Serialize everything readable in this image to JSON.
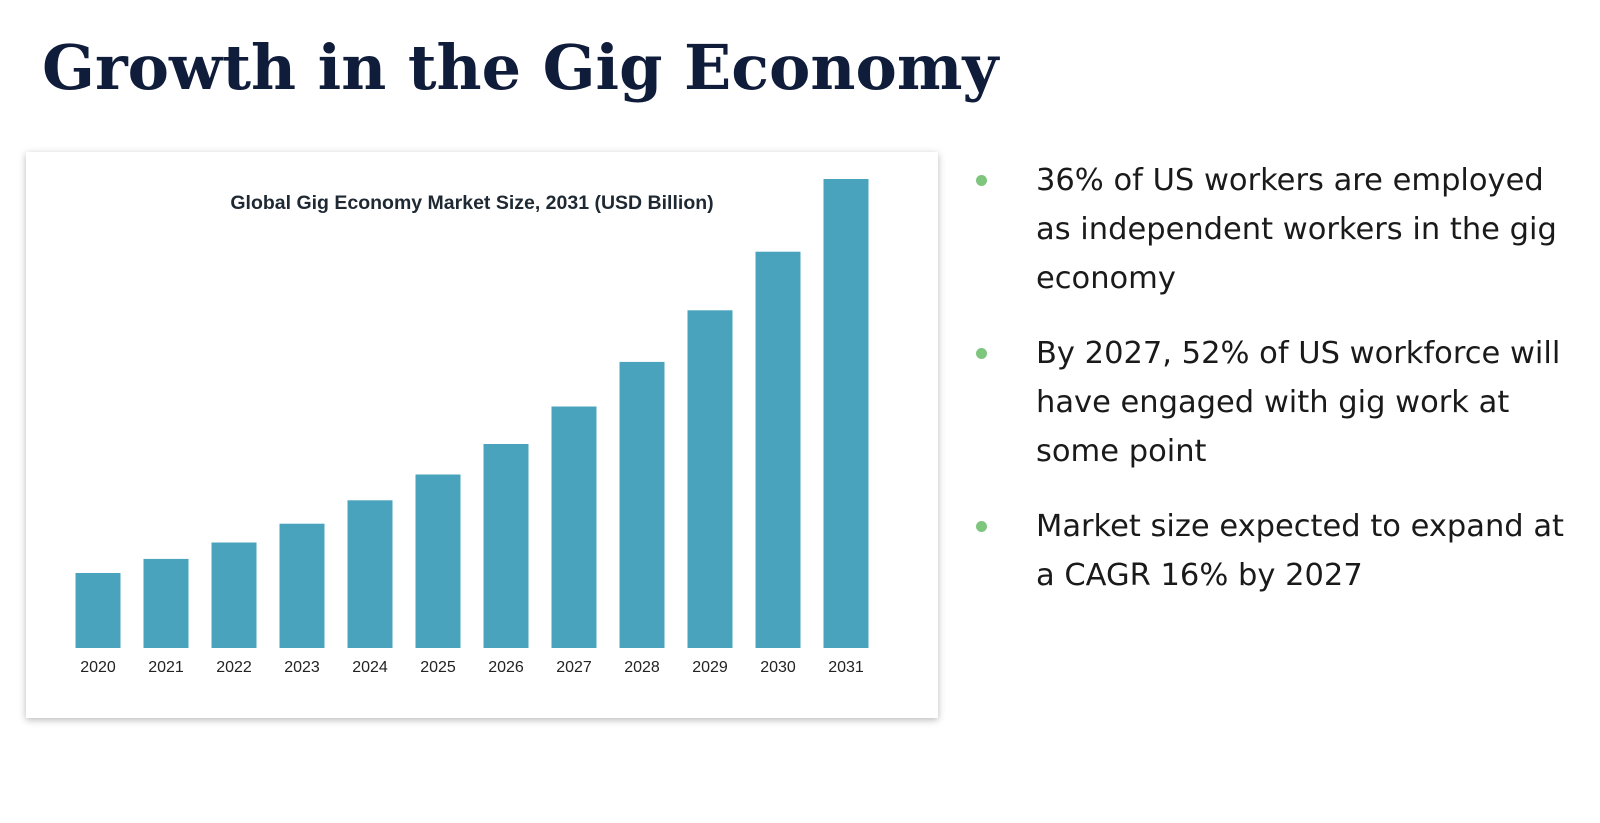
{
  "slide": {
    "title": "Growth in the Gig Economy"
  },
  "bullets": [
    "36% of US workers are employed as independent workers in the gig economy",
    "By 2027, 52% of US workforce will have engaged with gig work at some point",
    "Market size expected to expand at a CAGR 16% by 2027"
  ],
  "colors": {
    "bar": "#4aa3bd",
    "bullet": "#7ec57e",
    "title": "#0f1c3a"
  },
  "chart_data": {
    "type": "bar",
    "title": "Global Gig Economy Market Size, 2031 (USD Billion)",
    "categories": [
      "2020",
      "2021",
      "2022",
      "2023",
      "2024",
      "2025",
      "2026",
      "2027",
      "2028",
      "2029",
      "2030",
      "2031"
    ],
    "values": [
      16,
      19,
      22.5,
      26.5,
      31.5,
      37,
      43.5,
      51.5,
      61,
      72,
      84.5,
      100
    ],
    "xlabel": "",
    "ylabel": "",
    "ylim": [
      0,
      100
    ],
    "grid": false,
    "legend": "none"
  }
}
